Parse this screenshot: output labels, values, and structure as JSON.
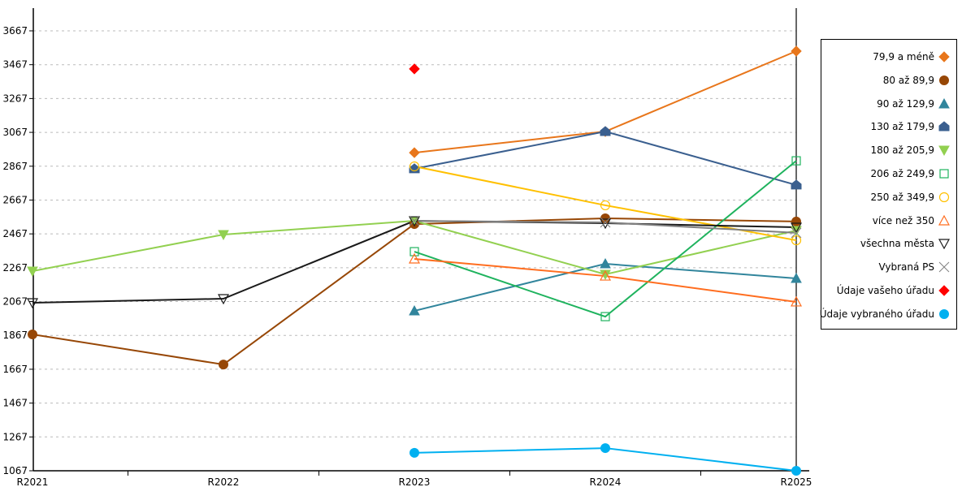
{
  "chart_data": {
    "type": "line",
    "title": "",
    "xlabel": "",
    "ylabel": "",
    "categories": [
      "R2021",
      "R2022",
      "R2023",
      "R2024",
      "R2025"
    ],
    "ylim": [
      1067,
      3667
    ],
    "yticks": [
      1067,
      1267,
      1467,
      1667,
      1867,
      2067,
      2267,
      2467,
      2667,
      2867,
      3067,
      3267,
      3467,
      3667
    ],
    "grid": true,
    "legend_position": "right",
    "series": [
      {
        "name": "79,9 a méně",
        "color": "#E8761B",
        "marker": "diamond",
        "values": [
          null,
          null,
          2947,
          3072,
          3547
        ]
      },
      {
        "name": "80 až 89,9",
        "color": "#974706",
        "marker": "circle",
        "values": [
          1873,
          1695,
          2525,
          2559,
          2540
        ]
      },
      {
        "name": "90 až 129,9",
        "color": "#31859C",
        "marker": "triangle",
        "values": [
          null,
          null,
          2012,
          2290,
          2204
        ]
      },
      {
        "name": "130 až 179,9",
        "color": "#3A5F8F",
        "marker": "pentagon",
        "values": [
          null,
          null,
          2852,
          3072,
          2756
        ]
      },
      {
        "name": "180 až 205,9",
        "color": "#92D050",
        "marker": "triangle-down",
        "values": [
          2247,
          2463,
          2544,
          2228,
          2487
        ]
      },
      {
        "name": "206 až 249,9",
        "color": "#1FB35E",
        "marker": "square-open",
        "values": [
          null,
          null,
          2362,
          1978,
          2899
        ]
      },
      {
        "name": "250 až 349,9",
        "color": "#FFC000",
        "marker": "circle-open",
        "values": [
          null,
          null,
          2866,
          2636,
          2429
        ]
      },
      {
        "name": "více než 350",
        "color": "#FF6D1F",
        "marker": "triangle-open",
        "values": [
          null,
          null,
          2319,
          2218,
          2065
        ]
      },
      {
        "name": "všechna města",
        "color": "#1A1A1A",
        "marker": "triangle-down-open",
        "values": [
          2060,
          2084,
          2544,
          2530,
          2506
        ]
      },
      {
        "name": "Vybraná PS",
        "color": "#808080",
        "marker": "x",
        "values": [
          null,
          null,
          2544,
          2535,
          2473
        ]
      },
      {
        "name": "Údaje vašeho úřadu",
        "color": "#FF0000",
        "marker": "diamond",
        "values": [
          null,
          null,
          3442,
          null,
          null
        ]
      },
      {
        "name": "Údaje vybraného úřadu",
        "color": "#00B0F0",
        "marker": "circle",
        "values": [
          null,
          null,
          1173,
          1201,
          1067
        ]
      }
    ]
  }
}
